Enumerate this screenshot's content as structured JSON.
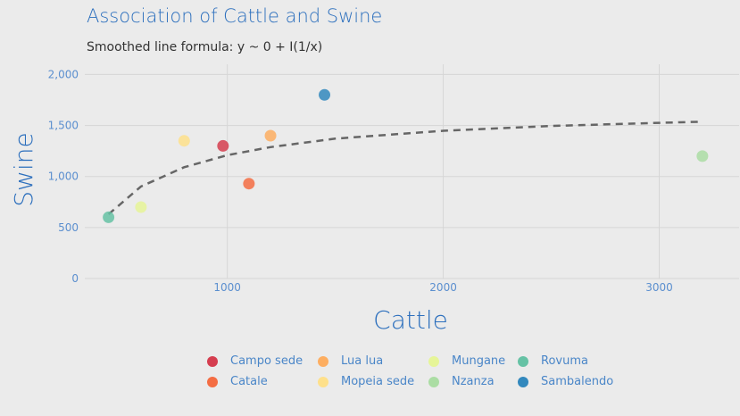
{
  "title": "Association of Cattle and Swine",
  "subtitle": "Smoothed line formula: y ~ 0 + I(1/x)",
  "chart_data": {
    "type": "scatter",
    "title": "Association of Cattle and Swine",
    "subtitle": "Smoothed line formula: y ~ 0 + I(1/x)",
    "xlabel": "Cattle",
    "ylabel": "Swine",
    "xlim": [
      340,
      3370
    ],
    "ylim": [
      0,
      2100
    ],
    "x_ticks": [
      1000,
      2000,
      3000
    ],
    "x_tick_labels": [
      "1000",
      "2000",
      "3000"
    ],
    "y_ticks": [
      0,
      500,
      1000,
      1500,
      2000
    ],
    "y_tick_labels": [
      "0",
      "500",
      "1,000",
      "1,500",
      "2,000"
    ],
    "grid": true,
    "legend_position": "bottom",
    "series": [
      {
        "name": "Campo sede",
        "color": "#d53e4f",
        "x": [
          980
        ],
        "y": [
          1300
        ]
      },
      {
        "name": "Catale",
        "color": "#f46d43",
        "x": [
          1100
        ],
        "y": [
          930
        ]
      },
      {
        "name": "Lua lua",
        "color": "#fdae61",
        "x": [
          1200
        ],
        "y": [
          1400
        ]
      },
      {
        "name": "Mopeia sede",
        "color": "#fee08b",
        "x": [
          800
        ],
        "y": [
          1350
        ]
      },
      {
        "name": "Mungane",
        "color": "#e6f598",
        "x": [
          600
        ],
        "y": [
          700
        ]
      },
      {
        "name": "Nzanza",
        "color": "#abdda4",
        "x": [
          3200
        ],
        "y": [
          1200
        ]
      },
      {
        "name": "Rovuma",
        "color": "#66c2a5",
        "x": [
          450
        ],
        "y": [
          600
        ]
      },
      {
        "name": "Sambalendo",
        "color": "#3288bd",
        "x": [
          1450
        ],
        "y": [
          1800
        ]
      }
    ],
    "smooth_line": {
      "color": "#666666",
      "style": "dashed",
      "x": [
        450,
        600,
        800,
        1000,
        1200,
        1500,
        2000,
        2500,
        3000,
        3200
      ],
      "y": [
        630,
        902,
        1091,
        1209,
        1288,
        1371,
        1448,
        1495,
        1526,
        1537
      ]
    }
  },
  "legend": {
    "items": [
      {
        "label": "Campo sede",
        "color": "#d53e4f"
      },
      {
        "label": "Catale",
        "color": "#f46d43"
      },
      {
        "label": "Lua lua",
        "color": "#fdae61"
      },
      {
        "label": "Mopeia sede",
        "color": "#fee08b"
      },
      {
        "label": "Mungane",
        "color": "#e6f598"
      },
      {
        "label": "Nzanza",
        "color": "#abdda4"
      },
      {
        "label": "Rovuma",
        "color": "#66c2a5"
      },
      {
        "label": "Sambalendo",
        "color": "#3288bd"
      }
    ]
  }
}
